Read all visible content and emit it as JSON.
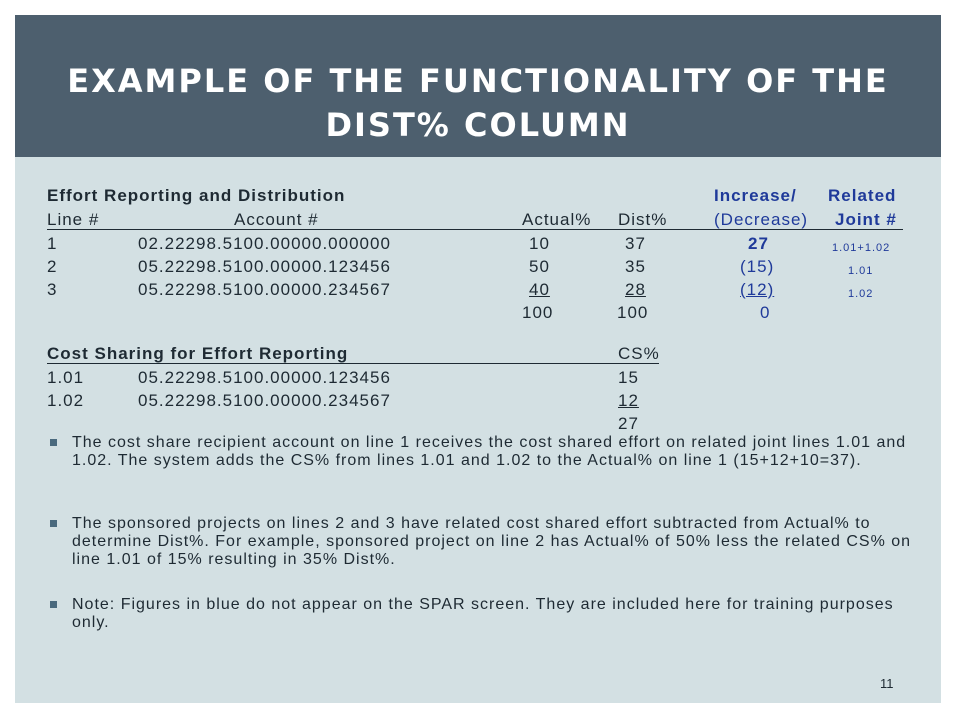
{
  "slide": {
    "title": "EXAMPLE OF THE FUNCTIONALITY OF THE DIST% COLUMN",
    "page_number": "11"
  },
  "effort_table": {
    "heading": "Effort Reporting and Distribution",
    "header_increase": "Increase/",
    "header_related": "Related",
    "columns": [
      "Line #",
      "Account #",
      "Actual%",
      "Dist%",
      "(Decrease)",
      "Joint #"
    ],
    "rows": [
      {
        "line": "1",
        "account": "02.22298.5100.00000.000000",
        "actual": "10",
        "dist": "37",
        "change": "27",
        "joint": "1.01+1.02"
      },
      {
        "line": "2",
        "account": "05.22298.5100.00000.123456",
        "actual": "50",
        "dist": "35",
        "change": "(15)",
        "joint": "1.01"
      },
      {
        "line": "3",
        "account": "05.22298.5100.00000.234567",
        "actual": "40",
        "dist": "28",
        "change": "(12)",
        "joint": "1.02"
      }
    ],
    "totals": {
      "actual": "100",
      "dist": "100",
      "change": "0"
    }
  },
  "cost_sharing_table": {
    "heading": "Cost Sharing for Effort Reporting",
    "cs_header": "CS%",
    "rows": [
      {
        "line": "1.01",
        "account": "05.22298.5100.00000.123456",
        "cs": "15"
      },
      {
        "line": "1.02",
        "account": "05.22298.5100.00000.234567",
        "cs": "12"
      }
    ],
    "total": "27"
  },
  "bullets": [
    "The cost share recipient account on line 1 receives the cost shared effort on related joint lines 1.01 and 1.02. The system adds the CS% from lines 1.01 and 1.02 to the Actual% on line 1 (15+12+10=37).",
    "The sponsored projects on lines 2 and 3 have related cost shared effort subtracted from Actual% to determine Dist%. For example, sponsored project on line 2 has Actual% of 50% less the related CS% on line 1.01 of 15% resulting in 35% Dist%.",
    "Note:  Figures in blue do not appear on the SPAR screen.  They are included here for training purposes only."
  ],
  "colors": {
    "title_bar": "#4d5f6e",
    "background": "#d3e0e3",
    "blue_text": "#1f3a9a"
  }
}
